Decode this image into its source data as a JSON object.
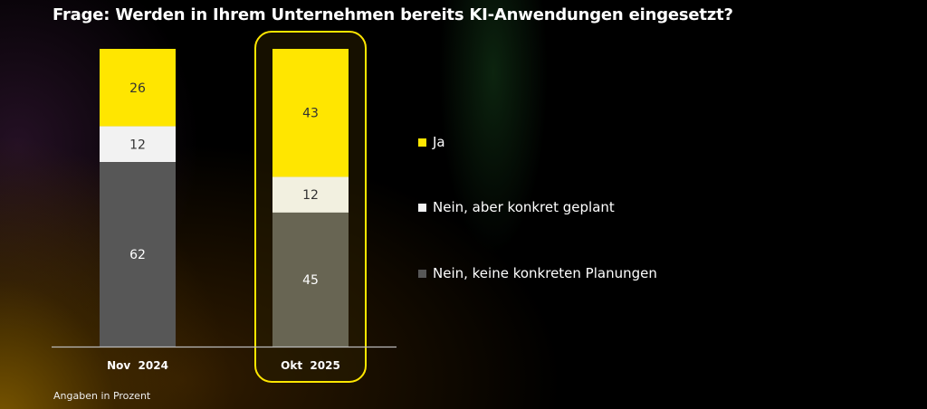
{
  "chart_data": {
    "type": "bar",
    "stacked": true,
    "title": "Frage: Werden in Ihrem Unternehmen bereits KI-Anwendungen eingesetzt?",
    "categories": [
      "Nov 2024",
      "Okt 2025"
    ],
    "highlighted_category": "Okt 2025",
    "series": [
      {
        "name": "Ja",
        "values": [
          26,
          43
        ],
        "colors": [
          "#ffe600",
          "#ffe600"
        ]
      },
      {
        "name": "Nein, aber konkret geplant",
        "values": [
          12,
          12
        ],
        "colors": [
          "#f2f2f2",
          "#f2f0e0"
        ]
      },
      {
        "name": "Nein, keine konkreten Planungen",
        "values": [
          62,
          45
        ],
        "colors": [
          "#575757",
          "#686553"
        ]
      }
    ],
    "ylim": [
      0,
      100
    ],
    "grid": false,
    "legend_position": "right",
    "footnote": "Angaben in Prozent",
    "highlight_color": "#ffe600"
  }
}
